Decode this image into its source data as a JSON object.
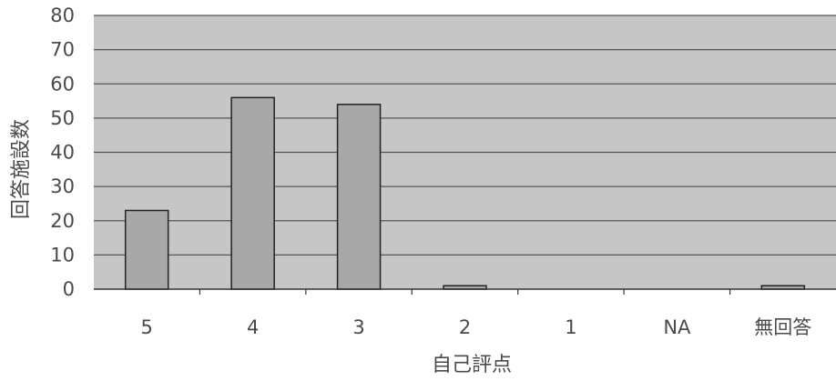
{
  "chart_data": {
    "type": "bar",
    "categories": [
      "5",
      "4",
      "3",
      "2",
      "1",
      "NA",
      "無回答"
    ],
    "values": [
      23,
      56,
      54,
      1,
      0,
      0,
      1
    ],
    "xlabel": "自己評点",
    "ylabel": "回答施設数",
    "ylim": [
      0,
      80
    ],
    "yticks": [
      0,
      10,
      20,
      30,
      40,
      50,
      60,
      70,
      80
    ],
    "grid": true,
    "legend": "none",
    "colors": {
      "plot_background": "#c6c6c6",
      "bar_fill": "#a8a8a8",
      "bar_stroke": "#222222",
      "gridline": "#555555",
      "text": "#4a4a4a"
    }
  }
}
